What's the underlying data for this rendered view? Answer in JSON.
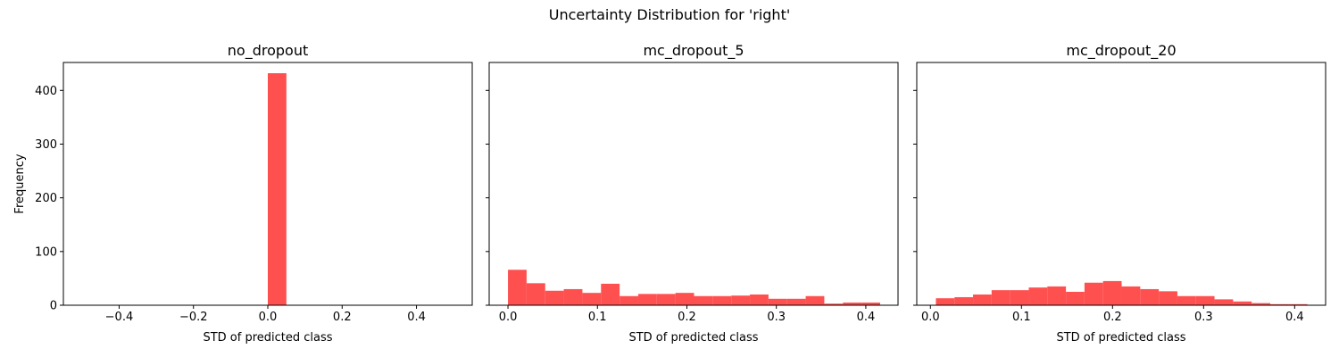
{
  "figure": {
    "title": "Uncertainty Distribution for 'right'",
    "bar_color": "#ff5050"
  },
  "chart_data": [
    {
      "type": "bar",
      "title": "no_dropout",
      "xlabel": "STD of predicted class",
      "ylabel": "Frequency",
      "xlim": [
        -0.55,
        0.55
      ],
      "ylim": [
        0,
        452
      ],
      "xticks": [
        -0.4,
        -0.2,
        0.0,
        0.2,
        0.4
      ],
      "xtick_labels": [
        "−0.4",
        "−0.2",
        "0.0",
        "0.2",
        "0.4"
      ],
      "yticks": [
        0,
        100,
        200,
        300,
        400
      ],
      "ytick_labels": [
        "0",
        "100",
        "200",
        "300",
        "400"
      ],
      "bin_edges": [
        0.0,
        0.05
      ],
      "values": [
        432
      ]
    },
    {
      "type": "bar",
      "title": "mc_dropout_5",
      "xlabel": "STD of predicted class",
      "ylabel": "",
      "xlim": [
        -0.021,
        0.436
      ],
      "ylim": [
        0,
        452
      ],
      "xticks": [
        0.0,
        0.1,
        0.2,
        0.3,
        0.4
      ],
      "xtick_labels": [
        "0.0",
        "0.1",
        "0.2",
        "0.3",
        "0.4"
      ],
      "yticks": [
        0,
        100,
        200,
        300,
        400
      ],
      "ytick_labels": [
        "",
        "",
        "",
        "",
        ""
      ],
      "bin_edges": [
        0.0,
        0.0208,
        0.0416,
        0.0624,
        0.0832,
        0.104,
        0.1248,
        0.1456,
        0.1664,
        0.1872,
        0.208,
        0.2288,
        0.2496,
        0.2704,
        0.2912,
        0.312,
        0.3328,
        0.3536,
        0.3744,
        0.3952,
        0.416
      ],
      "values": [
        66,
        41,
        27,
        30,
        23,
        40,
        17,
        21,
        21,
        23,
        17,
        17,
        18,
        20,
        12,
        12,
        17,
        3,
        5,
        5
      ]
    },
    {
      "type": "bar",
      "title": "mc_dropout_20",
      "xlabel": "STD of predicted class",
      "ylabel": "",
      "xlim": [
        -0.015,
        0.434
      ],
      "ylim": [
        0,
        452
      ],
      "xticks": [
        0.0,
        0.1,
        0.2,
        0.3,
        0.4
      ],
      "xtick_labels": [
        "0.0",
        "0.1",
        "0.2",
        "0.3",
        "0.4"
      ],
      "yticks": [
        0,
        100,
        200,
        300,
        400
      ],
      "ytick_labels": [
        "",
        "",
        "",
        "",
        ""
      ],
      "bin_edges": [
        0.006,
        0.0264,
        0.0468,
        0.0672,
        0.0876,
        0.108,
        0.1284,
        0.1488,
        0.1692,
        0.1896,
        0.21,
        0.2304,
        0.2508,
        0.2712,
        0.2916,
        0.312,
        0.3324,
        0.3528,
        0.3732,
        0.3936,
        0.414
      ],
      "values": [
        13,
        15,
        20,
        28,
        28,
        33,
        35,
        25,
        42,
        45,
        35,
        30,
        26,
        17,
        17,
        11,
        7,
        4,
        2,
        2
      ]
    }
  ]
}
